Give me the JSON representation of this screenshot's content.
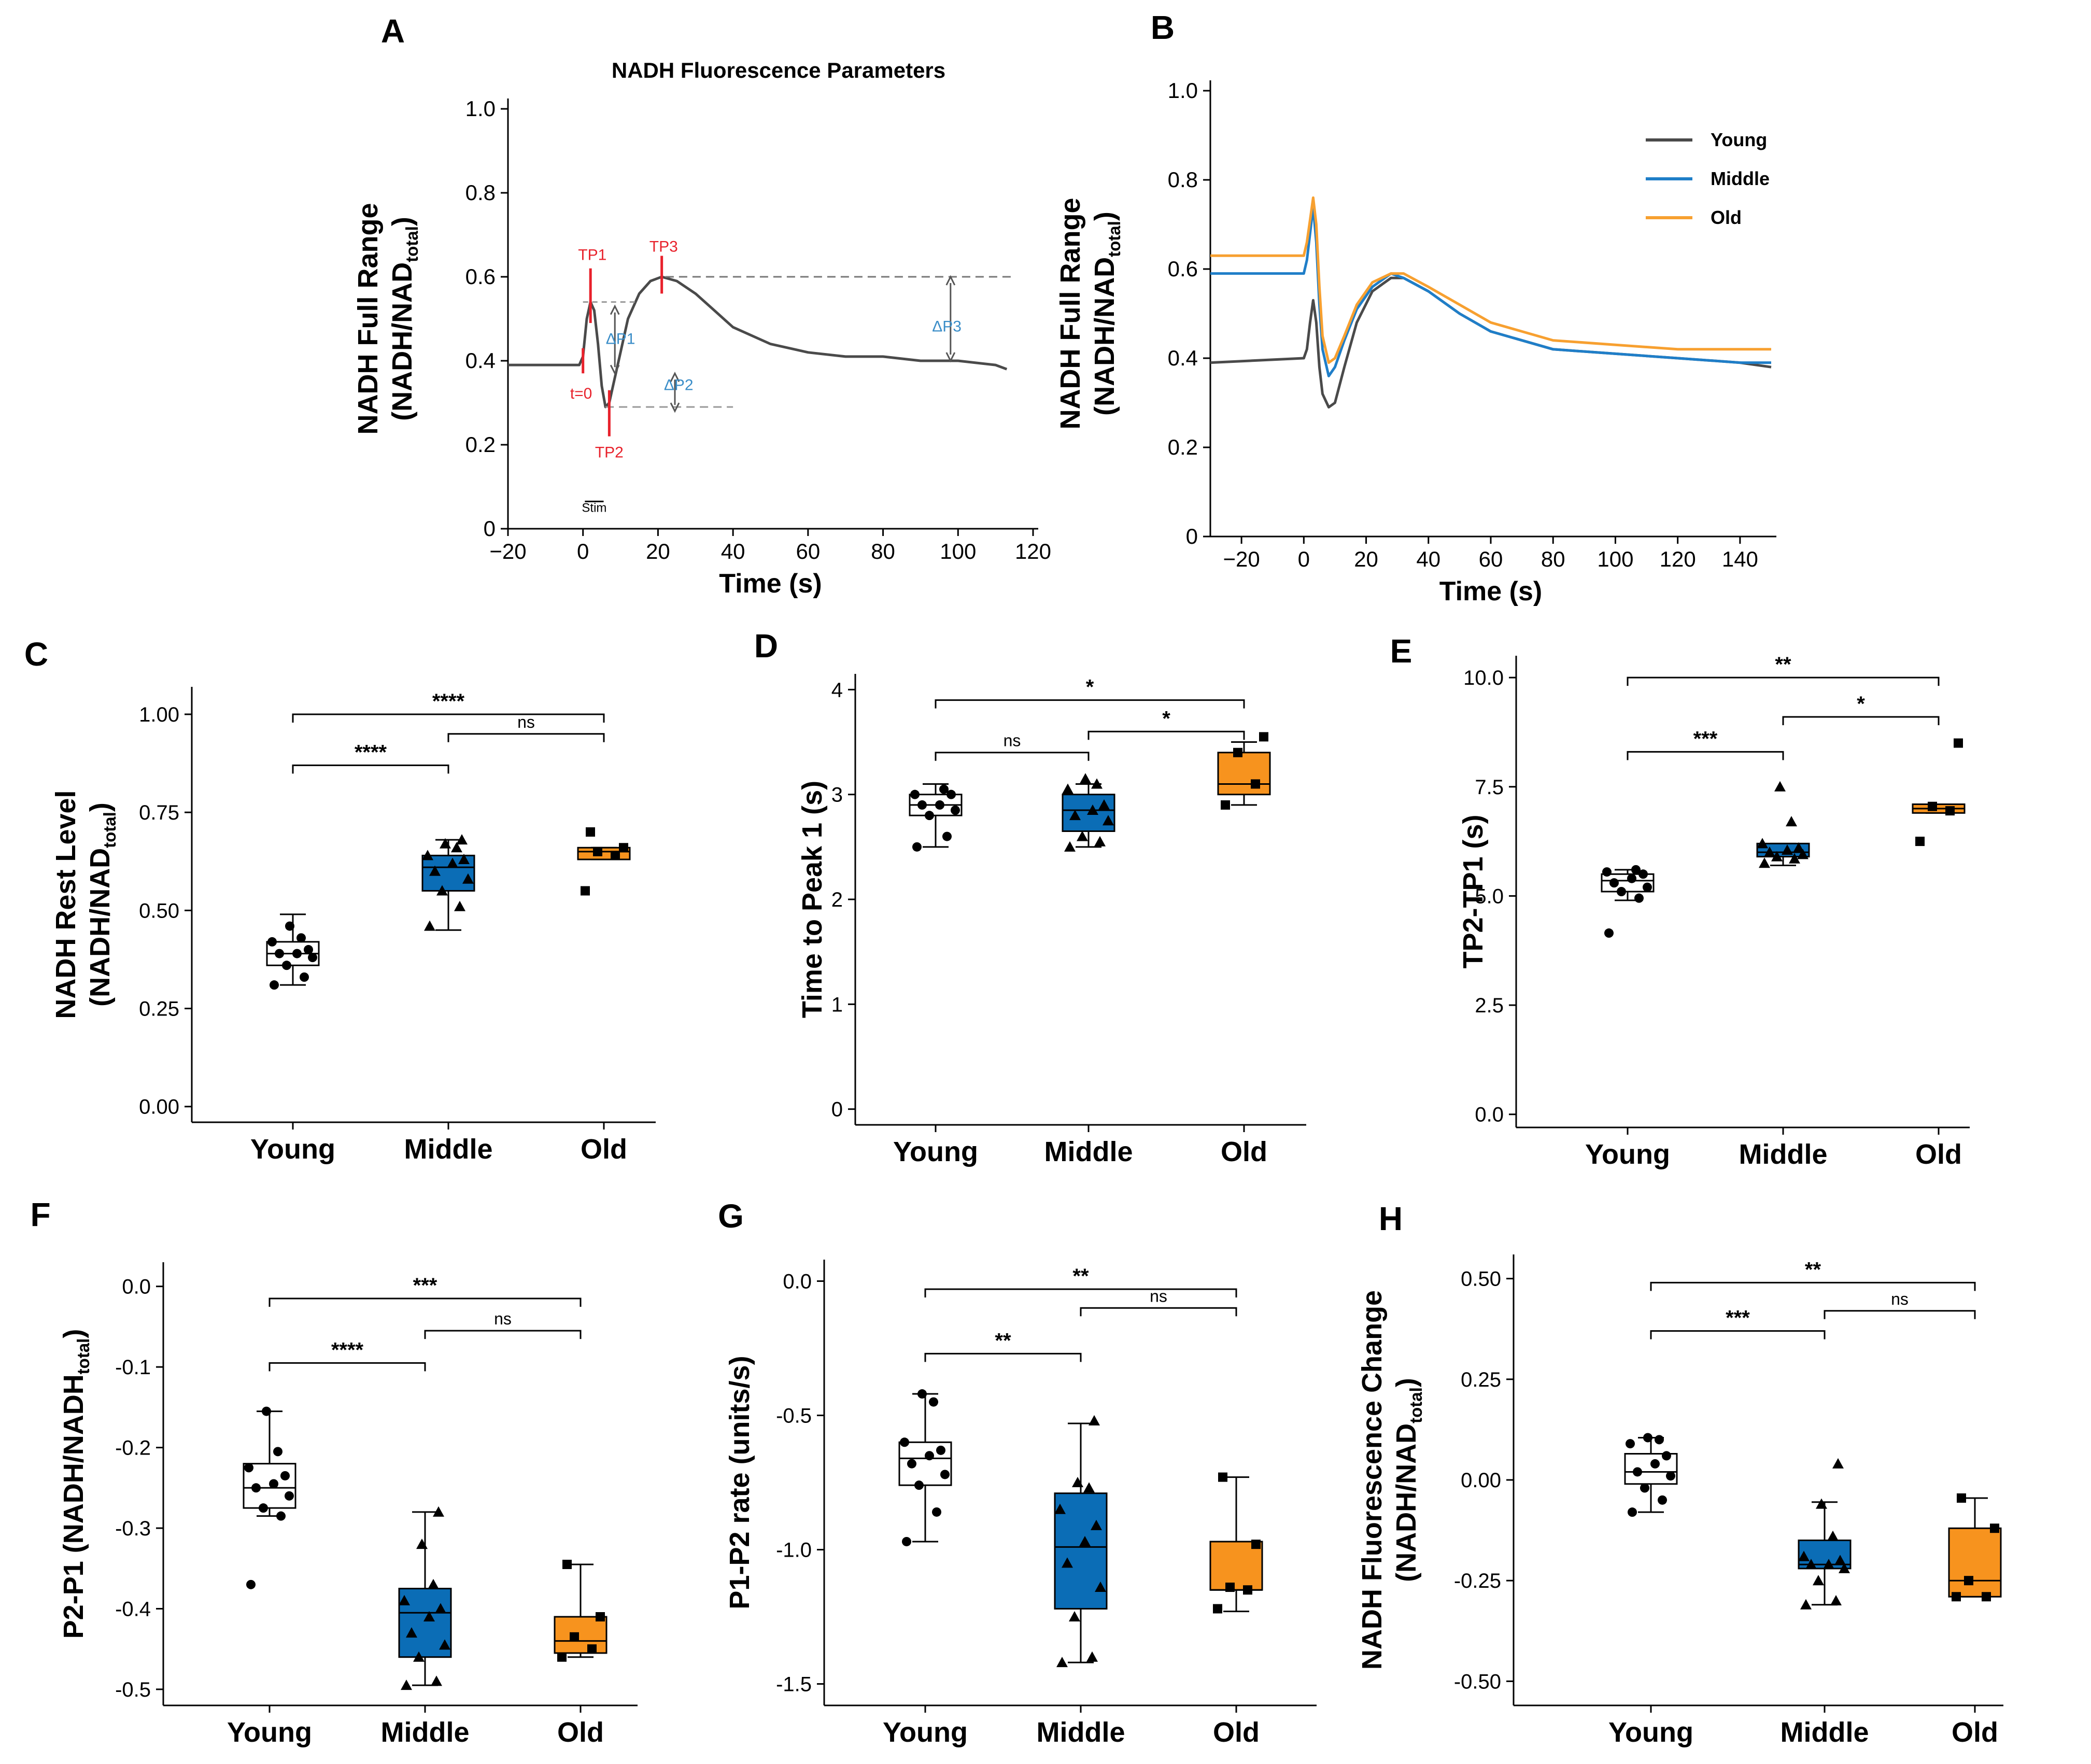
{
  "colors": {
    "young": "#ffffff",
    "middle": "#0b6db6",
    "old": "#f7931e",
    "young_line": "#4a4a4a",
    "middle_line": "#1f7ec8",
    "old_line": "#f7a030",
    "annotation_red": "#e8212b",
    "annotation_blue": "#3a8dc8",
    "axis": "#000000"
  },
  "chart_data": [
    {
      "panel": "A",
      "type": "line",
      "title": "NADH Fluorescence Parameters",
      "xlabel": "Time (s)",
      "ylabel_line1": "NADH Full Range",
      "ylabel_line2_main": "(NADH/NAD",
      "ylabel_line2_sub": "total",
      "ylabel_line2_end": ")",
      "xlim": [
        -20,
        120
      ],
      "ylim": [
        0,
        1.0
      ],
      "xticks": [
        -20,
        0,
        20,
        40,
        60,
        80,
        100,
        120
      ],
      "yticks": [
        0,
        0.2,
        0.4,
        0.6,
        0.8,
        1.0
      ],
      "ytick_labels": [
        "0",
        "0.2",
        "0.4",
        "0.6",
        "0.8",
        "1.0"
      ],
      "series": [
        {
          "name": "Trace",
          "x": [
            -20,
            -5,
            -1,
            0,
            1,
            2,
            3,
            4,
            5,
            6,
            7,
            8,
            10,
            12,
            15,
            18,
            21,
            25,
            30,
            35,
            40,
            50,
            60,
            70,
            80,
            90,
            100,
            110,
            113
          ],
          "y": [
            0.39,
            0.39,
            0.39,
            0.41,
            0.5,
            0.54,
            0.52,
            0.44,
            0.34,
            0.29,
            0.3,
            0.34,
            0.42,
            0.5,
            0.56,
            0.59,
            0.6,
            0.59,
            0.56,
            0.52,
            0.48,
            0.44,
            0.42,
            0.41,
            0.41,
            0.4,
            0.4,
            0.39,
            0.38
          ]
        }
      ],
      "annotations": {
        "tp1": "TP1",
        "tp2": "TP2",
        "tp3": "TP3",
        "t0": "t=0",
        "dp1": "ΔP1",
        "dp2": "ΔP2",
        "dp3": "ΔP3",
        "stim": "Stim"
      }
    },
    {
      "panel": "B",
      "type": "line",
      "xlabel": "Time (s)",
      "ylabel_line1": "NADH Full Range",
      "ylabel_line2_main": "(NADH/NAD",
      "ylabel_line2_sub": "total",
      "ylabel_line2_end": ")",
      "xlim": [
        -30,
        150
      ],
      "ylim": [
        0,
        1.0
      ],
      "xticks": [
        -20,
        0,
        20,
        40,
        60,
        80,
        100,
        120,
        140
      ],
      "yticks": [
        0,
        0.2,
        0.4,
        0.6,
        0.8,
        1.0
      ],
      "ytick_labels": [
        "0",
        "0.2",
        "0.4",
        "0.6",
        "0.8",
        "1.0"
      ],
      "legend": [
        "Young",
        "Middle",
        "Old"
      ],
      "series": [
        {
          "name": "Young",
          "x": [
            -30,
            0,
            1,
            2,
            3,
            4,
            5,
            6,
            8,
            10,
            13,
            17,
            22,
            28,
            32,
            40,
            50,
            60,
            80,
            100,
            120,
            140,
            150
          ],
          "y": [
            0.39,
            0.4,
            0.42,
            0.48,
            0.53,
            0.48,
            0.38,
            0.32,
            0.29,
            0.3,
            0.38,
            0.48,
            0.55,
            0.58,
            0.58,
            0.55,
            0.5,
            0.46,
            0.42,
            0.41,
            0.4,
            0.39,
            0.38
          ]
        },
        {
          "name": "Middle",
          "x": [
            -30,
            0,
            1,
            2,
            3,
            4,
            5,
            6,
            8,
            10,
            13,
            17,
            22,
            28,
            32,
            40,
            50,
            60,
            80,
            100,
            120,
            140,
            150
          ],
          "y": [
            0.59,
            0.59,
            0.62,
            0.68,
            0.74,
            0.66,
            0.52,
            0.42,
            0.36,
            0.38,
            0.44,
            0.51,
            0.56,
            0.59,
            0.58,
            0.55,
            0.5,
            0.46,
            0.42,
            0.41,
            0.4,
            0.39,
            0.39
          ]
        },
        {
          "name": "Old",
          "x": [
            -30,
            0,
            1,
            2,
            3,
            4,
            5,
            6,
            8,
            10,
            13,
            17,
            22,
            28,
            32,
            40,
            50,
            60,
            80,
            100,
            120,
            140,
            150
          ],
          "y": [
            0.63,
            0.63,
            0.66,
            0.71,
            0.76,
            0.7,
            0.56,
            0.45,
            0.39,
            0.4,
            0.45,
            0.52,
            0.57,
            0.59,
            0.59,
            0.56,
            0.52,
            0.48,
            0.44,
            0.43,
            0.42,
            0.42,
            0.42
          ]
        }
      ]
    },
    {
      "panel": "C",
      "type": "box",
      "categories": [
        "Young",
        "Middle",
        "Old"
      ],
      "ylabel_line1": "NADH Rest Level",
      "ylabel_line2_main": "(NADH/NAD",
      "ylabel_line2_sub": "total",
      "ylabel_line2_end": ")",
      "ylim": [
        -0.04,
        1.07
      ],
      "yticks": [
        0,
        0.25,
        0.5,
        0.75,
        1.0
      ],
      "ytick_labels": [
        "0.00",
        "0.25",
        "0.50",
        "0.75",
        "1.00"
      ],
      "boxes": [
        {
          "group": "Young",
          "min": 0.31,
          "q1": 0.36,
          "median": 0.39,
          "q3": 0.42,
          "max": 0.49
        },
        {
          "group": "Middle",
          "min": 0.45,
          "q1": 0.55,
          "median": 0.61,
          "q3": 0.64,
          "max": 0.68
        },
        {
          "group": "Old",
          "min": 0.63,
          "q1": 0.63,
          "median": 0.65,
          "q3": 0.66,
          "max": 0.66
        }
      ],
      "points": [
        [
          0.31,
          0.33,
          0.36,
          0.38,
          0.39,
          0.39,
          0.4,
          0.42,
          0.43,
          0.46
        ],
        [
          0.46,
          0.51,
          0.55,
          0.58,
          0.6,
          0.62,
          0.63,
          0.64,
          0.66,
          0.67,
          0.68
        ],
        [
          0.55,
          0.64,
          0.65,
          0.66,
          0.7
        ]
      ],
      "comparisons": [
        {
          "from": 0,
          "to": 2,
          "label": "****",
          "level": 1.0
        },
        {
          "from": 0,
          "to": 1,
          "label": "****",
          "level": 0.87
        },
        {
          "from": 1,
          "to": 2,
          "label": "ns",
          "level": 0.95
        }
      ]
    },
    {
      "panel": "D",
      "type": "box",
      "categories": [
        "Young",
        "Middle",
        "Old"
      ],
      "ylabel": "Time to Peak 1 (s)",
      "ylim": [
        -0.15,
        4.15
      ],
      "yticks": [
        0,
        1,
        2,
        3,
        4
      ],
      "ytick_labels": [
        "0",
        "1",
        "2",
        "3",
        "4"
      ],
      "boxes": [
        {
          "group": "Young",
          "min": 2.5,
          "q1": 2.8,
          "median": 2.9,
          "q3": 3.0,
          "max": 3.1
        },
        {
          "group": "Middle",
          "min": 2.5,
          "q1": 2.65,
          "median": 2.85,
          "q3": 3.0,
          "max": 3.1
        },
        {
          "group": "Old",
          "min": 2.9,
          "q1": 3.0,
          "median": 3.1,
          "q3": 3.4,
          "max": 3.5
        }
      ],
      "points": [
        [
          2.5,
          2.6,
          2.8,
          2.85,
          2.9,
          2.9,
          3.0,
          3.0,
          3.05
        ],
        [
          2.5,
          2.55,
          2.6,
          2.75,
          2.8,
          2.85,
          2.9,
          3.05,
          3.1,
          3.15
        ],
        [
          2.9,
          3.1,
          3.4,
          3.55
        ]
      ],
      "comparisons": [
        {
          "from": 0,
          "to": 2,
          "label": "*",
          "level": 3.9
        },
        {
          "from": 0,
          "to": 1,
          "label": "ns",
          "level": 3.4
        },
        {
          "from": 1,
          "to": 2,
          "label": "*",
          "level": 3.6
        }
      ]
    },
    {
      "panel": "E",
      "type": "box",
      "categories": [
        "Young",
        "Middle",
        "Old"
      ],
      "ylabel": "TP2-TP1 (s)",
      "ylim": [
        -0.3,
        10.5
      ],
      "yticks": [
        0,
        2.5,
        5.0,
        7.5,
        10.0
      ],
      "ytick_labels": [
        "0.0",
        "2.5",
        "5.0",
        "7.5",
        "10.0"
      ],
      "boxes": [
        {
          "group": "Young",
          "min": 4.9,
          "q1": 5.1,
          "median": 5.35,
          "q3": 5.5,
          "max": 5.6
        },
        {
          "group": "Middle",
          "min": 5.7,
          "q1": 5.9,
          "median": 6.0,
          "q3": 6.2,
          "max": 6.2
        },
        {
          "group": "Old",
          "min": 6.9,
          "q1": 6.9,
          "median": 7.0,
          "q3": 7.1,
          "max": 7.1
        }
      ],
      "points": [
        [
          4.15,
          4.95,
          5.1,
          5.2,
          5.3,
          5.4,
          5.5,
          5.55,
          5.6
        ],
        [
          5.75,
          5.85,
          5.9,
          5.95,
          6.0,
          6.05,
          6.1,
          6.2,
          6.7,
          7.5
        ],
        [
          6.25,
          6.95,
          7.05,
          8.5
        ]
      ],
      "comparisons": [
        {
          "from": 0,
          "to": 2,
          "label": "**",
          "level": 10.0
        },
        {
          "from": 0,
          "to": 1,
          "label": "***",
          "level": 8.3
        },
        {
          "from": 1,
          "to": 2,
          "label": "*",
          "level": 9.1
        }
      ]
    },
    {
      "panel": "F",
      "type": "box",
      "categories": [
        "Young",
        "Middle",
        "Old"
      ],
      "ylabel_main": "P2-P1 (NADH/NADH",
      "ylabel_sub": "total",
      "ylabel_end": ")",
      "ylim": [
        -0.52,
        0.03
      ],
      "yticks": [
        0,
        -0.1,
        -0.2,
        -0.3,
        -0.4,
        -0.5
      ],
      "ytick_labels": [
        "0.0",
        "-0.1",
        "-0.2",
        "-0.3",
        "-0.4",
        "-0.5"
      ],
      "boxes": [
        {
          "group": "Young",
          "min": -0.285,
          "q1": -0.275,
          "median": -0.25,
          "q3": -0.22,
          "max": -0.155
        },
        {
          "group": "Middle",
          "min": -0.495,
          "q1": -0.46,
          "median": -0.405,
          "q3": -0.375,
          "max": -0.28
        },
        {
          "group": "Old",
          "min": -0.46,
          "q1": -0.455,
          "median": -0.44,
          "q3": -0.41,
          "max": -0.345
        }
      ],
      "points": [
        [
          -0.37,
          -0.285,
          -0.275,
          -0.26,
          -0.25,
          -0.245,
          -0.235,
          -0.225,
          -0.205,
          -0.155
        ],
        [
          -0.495,
          -0.49,
          -0.46,
          -0.445,
          -0.43,
          -0.41,
          -0.4,
          -0.39,
          -0.37,
          -0.32,
          -0.28
        ],
        [
          -0.46,
          -0.45,
          -0.435,
          -0.41,
          -0.345
        ]
      ],
      "comparisons": [
        {
          "from": 0,
          "to": 2,
          "label": "***",
          "level": -0.015
        },
        {
          "from": 0,
          "to": 1,
          "label": "****",
          "level": -0.095
        },
        {
          "from": 1,
          "to": 2,
          "label": "ns",
          "level": -0.055
        }
      ]
    },
    {
      "panel": "G",
      "type": "box",
      "categories": [
        "Young",
        "Middle",
        "Old"
      ],
      "ylabel": "P1-P2 rate (units/s)",
      "ylim": [
        -1.58,
        0.08
      ],
      "yticks": [
        0,
        -0.5,
        -1.0,
        -1.5
      ],
      "ytick_labels": [
        "0.0",
        "-0.5",
        "-1.0",
        "-1.5"
      ],
      "boxes": [
        {
          "group": "Young",
          "min": -0.97,
          "q1": -0.76,
          "median": -0.66,
          "q3": -0.6,
          "max": -0.42
        },
        {
          "group": "Middle",
          "min": -1.42,
          "q1": -1.22,
          "median": -0.99,
          "q3": -0.79,
          "max": -0.53
        },
        {
          "group": "Old",
          "min": -1.23,
          "q1": -1.15,
          "median": -1.15,
          "q3": -0.97,
          "max": -0.73
        }
      ],
      "points": [
        [
          -0.97,
          -0.86,
          -0.76,
          -0.72,
          -0.68,
          -0.65,
          -0.63,
          -0.6,
          -0.45,
          -0.42
        ],
        [
          -1.42,
          -1.4,
          -1.25,
          -1.14,
          -1.05,
          -0.97,
          -0.91,
          -0.85,
          -0.77,
          -0.75,
          -0.52
        ],
        [
          -1.22,
          -1.15,
          -1.14,
          -0.98,
          -0.73
        ]
      ],
      "comparisons": [
        {
          "from": 0,
          "to": 2,
          "label": "**",
          "level": -0.03
        },
        {
          "from": 0,
          "to": 1,
          "label": "**",
          "level": -0.27
        },
        {
          "from": 1,
          "to": 2,
          "label": "ns",
          "level": -0.1
        }
      ]
    },
    {
      "panel": "H",
      "type": "box",
      "categories": [
        "Young",
        "Middle",
        "Old"
      ],
      "ylabel_line1": "NADH Fluorescence Change",
      "ylabel_line2_main": "(NADH/NAD",
      "ylabel_line2_sub": "total",
      "ylabel_line2_end": ")",
      "ylim": [
        -0.56,
        0.56
      ],
      "yticks": [
        0.5,
        0.25,
        0,
        -0.25,
        -0.5
      ],
      "ytick_labels": [
        "0.50",
        "0.25",
        "0.00",
        "-0.25",
        "-0.50"
      ],
      "boxes": [
        {
          "group": "Young",
          "min": -0.08,
          "q1": -0.01,
          "median": 0.02,
          "q3": 0.065,
          "max": 0.105
        },
        {
          "group": "Middle",
          "min": -0.31,
          "q1": -0.22,
          "median": -0.21,
          "q3": -0.15,
          "max": -0.055
        },
        {
          "group": "Old",
          "min": -0.29,
          "q1": -0.29,
          "median": -0.25,
          "q3": -0.12,
          "max": -0.045
        }
      ],
      "points": [
        [
          -0.08,
          -0.05,
          -0.02,
          0.01,
          0.02,
          0.04,
          0.06,
          0.09,
          0.1,
          0.105
        ],
        [
          -0.31,
          -0.3,
          -0.25,
          -0.22,
          -0.21,
          -0.21,
          -0.2,
          -0.19,
          -0.14,
          -0.06,
          0.04
        ],
        [
          -0.29,
          -0.29,
          -0.25,
          -0.12,
          -0.045
        ]
      ],
      "comparisons": [
        {
          "from": 0,
          "to": 2,
          "label": "**",
          "level": 0.49
        },
        {
          "from": 0,
          "to": 1,
          "label": "***",
          "level": 0.37
        },
        {
          "from": 1,
          "to": 2,
          "label": "ns",
          "level": 0.42
        }
      ]
    }
  ],
  "panel_labels": [
    "A",
    "B",
    "C",
    "D",
    "E",
    "F",
    "G",
    "H"
  ]
}
